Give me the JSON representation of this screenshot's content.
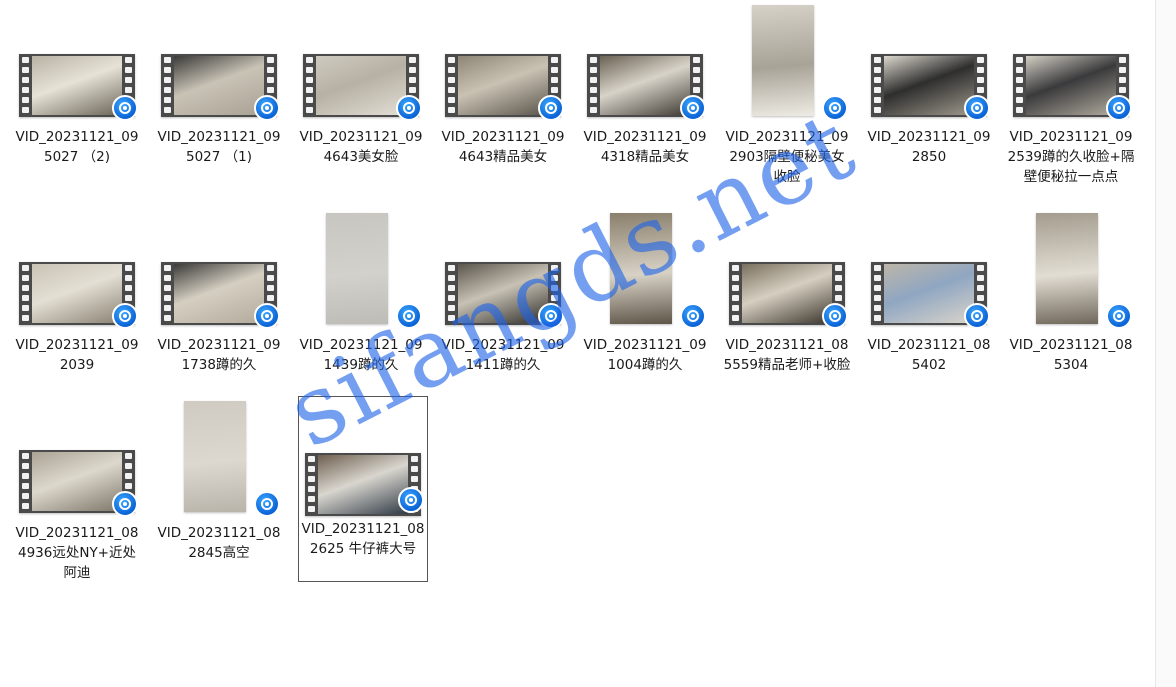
{
  "watermark": "sifangds.net",
  "files": [
    {
      "name": "VID_20231121_095027 （2)",
      "orientation": "landscape",
      "colors": [
        "#b8b2a4",
        "#e6e2d6",
        "#6b6558"
      ]
    },
    {
      "name": "VID_20231121_095027 （1)",
      "orientation": "landscape",
      "colors": [
        "#3b3a38",
        "#c9c3b6",
        "#a8a194"
      ]
    },
    {
      "name": "VID_20231121_094643美女脸",
      "orientation": "landscape",
      "colors": [
        "#cfcac0",
        "#b7b1a4",
        "#e2ded4"
      ]
    },
    {
      "name": "VID_20231121_094643精品美女",
      "orientation": "landscape",
      "colors": [
        "#8e8575",
        "#c9c2b3",
        "#5a554c"
      ]
    },
    {
      "name": "VID_20231121_094318精品美女",
      "orientation": "landscape",
      "colors": [
        "#6a6254",
        "#d8d3c9",
        "#3f3a33"
      ]
    },
    {
      "name": "VID_20231121_092903隔壁便秘美女收脸",
      "orientation": "portrait",
      "colors": [
        "#d6d2c8",
        "#a8a397",
        "#eeebe4"
      ]
    },
    {
      "name": "VID_20231121_092850",
      "orientation": "landscape",
      "colors": [
        "#dcd8ce",
        "#2e2e2e",
        "#9f998c"
      ]
    },
    {
      "name": "VID_20231121_092539蹲的久收脸+隔壁便秘拉一点点",
      "orientation": "landscape",
      "colors": [
        "#d3cfc5",
        "#3a3a3c",
        "#b1ab9e"
      ]
    },
    {
      "name": "VID_20231121_092039",
      "orientation": "landscape",
      "colors": [
        "#c9c3b5",
        "#e4dfd4",
        "#8a8374"
      ]
    },
    {
      "name": "VID_20231121_091738蹲的久",
      "orientation": "landscape",
      "colors": [
        "#3c3b39",
        "#d5cfc2",
        "#b3ab9c"
      ]
    },
    {
      "name": "VID_20231121_091439蹲的久",
      "orientation": "portrait",
      "colors": [
        "#c7c6c1",
        "#d2d1cc",
        "#bdbcb7"
      ]
    },
    {
      "name": "VID_20231121_091411蹲的久",
      "orientation": "landscape",
      "colors": [
        "#5b564d",
        "#c8c2b5",
        "#2f2d2a"
      ]
    },
    {
      "name": "VID_20231121_091004蹲的久",
      "orientation": "portrait",
      "colors": [
        "#8a7f6c",
        "#d8d2c6",
        "#5e5548"
      ]
    },
    {
      "name": "VID_20231121_085559精品老师+收脸",
      "orientation": "landscape",
      "colors": [
        "#7a705f",
        "#d6cfc1",
        "#3c362d"
      ]
    },
    {
      "name": "VID_20231121_085402",
      "orientation": "landscape",
      "colors": [
        "#bdb6a8",
        "#8fa6c2",
        "#d9d4ca"
      ]
    },
    {
      "name": "VID_20231121_085304",
      "orientation": "portrait",
      "colors": [
        "#a39c8e",
        "#e2ddd3",
        "#6f675a"
      ]
    },
    {
      "name": "VID_20231121_084936远处NY+近处阿迪",
      "orientation": "landscape",
      "colors": [
        "#aaa395",
        "#ddd8cd",
        "#7e776a"
      ]
    },
    {
      "name": "VID_20231121_082845高空",
      "orientation": "portrait",
      "colors": [
        "#cfcbc2",
        "#dcd8d0",
        "#b9b4aa"
      ]
    },
    {
      "name": "VID_20231121_082625 牛仔裤大号",
      "orientation": "landscape",
      "colors": [
        "#6e5f4f",
        "#d9d6cf",
        "#2f3a45"
      ],
      "selected": true
    }
  ]
}
